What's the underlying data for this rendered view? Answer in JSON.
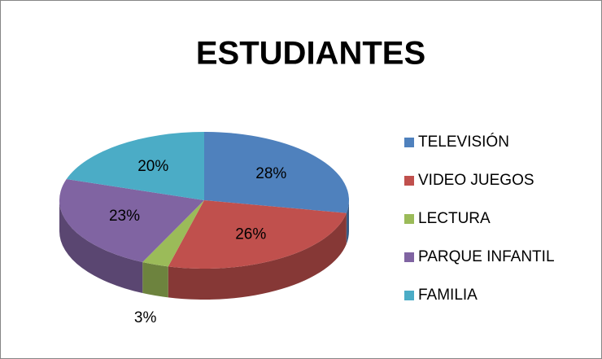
{
  "chart_data": {
    "type": "pie",
    "title": "ESTUDIANTES",
    "categories": [
      "TELEVISIÓN",
      "VIDEO JUEGOS",
      "LECTURA",
      "PARQUE INFANTIL",
      "FAMILIA"
    ],
    "values": [
      28,
      26,
      3,
      23,
      20
    ],
    "value_labels": [
      "28%",
      "26%",
      "3%",
      "23%",
      "20%"
    ],
    "colors": [
      "#4f81bd",
      "#c0504d",
      "#9bbb59",
      "#8064a2",
      "#4bacc6"
    ],
    "legend": "right"
  }
}
